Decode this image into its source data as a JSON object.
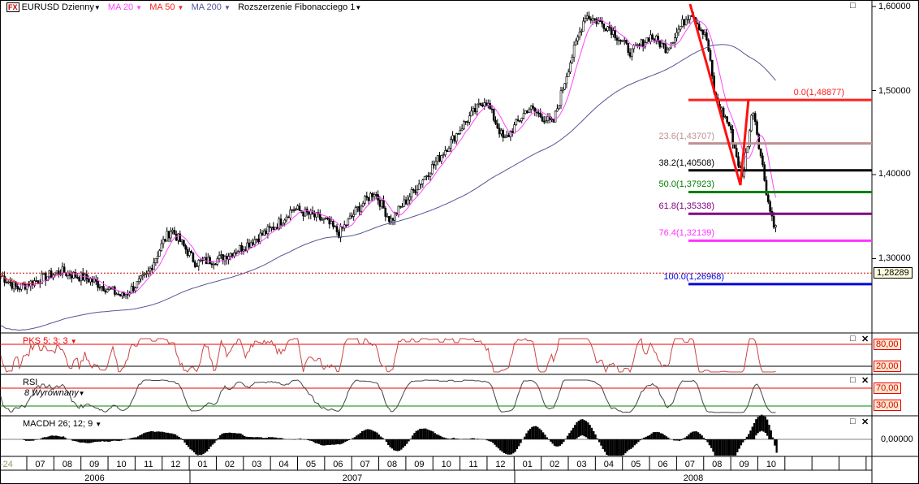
{
  "legend": {
    "fx_badge": "FX",
    "symbol": "EURUSD Dzienny",
    "ma20": "MA 20",
    "ma50": "MA 50",
    "ma200": "MA 200",
    "fib": "Rozszerzenie Fibonacciego 1"
  },
  "colors": {
    "ma20": "#ff44ff",
    "ma50": "#ff3333",
    "ma200": "#555599",
    "fib0": "#ff2020",
    "fib236": "#c09090",
    "fib382": "#000000",
    "fib50": "#008000",
    "fib618": "#800080",
    "fib764": "#ff33ff",
    "fib100": "#0000dd"
  },
  "price_axis": [
    "1,60000",
    "1,50000",
    "1,40000",
    "1,30000"
  ],
  "current_price": "1,28289",
  "fib_levels": [
    {
      "label": "0.0(1,48877)",
      "value": 1.48877,
      "color": "#ff2020"
    },
    {
      "label": "23.6(1,43707)",
      "value": 1.43707,
      "color": "#c09090"
    },
    {
      "label": "38.2(1,40508)",
      "value": 1.40508,
      "color": "#000000"
    },
    {
      "label": "50.0(1,37923)",
      "value": 1.37923,
      "color": "#008000"
    },
    {
      "label": "61.8(1,35338)",
      "value": 1.35338,
      "color": "#800080"
    },
    {
      "label": "76.4(1,32139)",
      "value": 1.32139,
      "color": "#ff33ff"
    },
    {
      "label": "100.0(1,26968)",
      "value": 1.26968,
      "color": "#0000dd"
    }
  ],
  "panels": {
    "stoch": {
      "title": "PKS 5; 3; 3",
      "levels": [
        "80,00",
        "20,00"
      ]
    },
    "rsi": {
      "title": "RSI",
      "subtitle": "8 Wyrównany",
      "levels": [
        "70,00",
        "30,00"
      ]
    },
    "macd": {
      "title": "MACDH 26; 12; 9",
      "zero": "0,00000"
    }
  },
  "time_axis": {
    "first": "-24",
    "months": [
      "07",
      "08",
      "09",
      "10",
      "11",
      "12",
      "01",
      "02",
      "03",
      "04",
      "05",
      "06",
      "07",
      "08",
      "09",
      "10",
      "11",
      "12",
      "01",
      "02",
      "03",
      "04",
      "05",
      "06",
      "07",
      "08",
      "09",
      "10"
    ],
    "years": [
      "2006",
      "2007",
      "2008"
    ]
  },
  "chart_data": {
    "type": "candlestick",
    "title": "EURUSD Dzienny",
    "ylim": [
      1.2,
      1.61
    ],
    "price_path_month_offset": [
      0,
      0.6,
      2.2,
      3.3,
      4.5,
      5.4,
      6,
      6.3,
      7.2,
      8.1,
      9,
      10.2,
      10.8,
      12,
      12.5,
      13.2,
      13.8,
      14.4,
      15,
      16.2,
      17.1,
      17.9,
      18.6,
      19.5,
      20.4,
      21,
      21.6,
      22.5,
      23.3,
      24,
      24.6,
      25.5,
      26.1,
      26.4,
      26.9,
      27.4,
      27.8,
      28.1,
      28.4,
      28.7,
      28.8
    ],
    "price_path_values": [
      1.28,
      1.265,
      1.285,
      1.275,
      1.255,
      1.28,
      1.32,
      1.335,
      1.295,
      1.3,
      1.315,
      1.34,
      1.36,
      1.345,
      1.33,
      1.36,
      1.38,
      1.345,
      1.37,
      1.42,
      1.46,
      1.49,
      1.44,
      1.48,
      1.46,
      1.53,
      1.59,
      1.575,
      1.545,
      1.565,
      1.55,
      1.595,
      1.56,
      1.49,
      1.46,
      1.395,
      1.48,
      1.42,
      1.36,
      1.33,
      1.28
    ]
  }
}
